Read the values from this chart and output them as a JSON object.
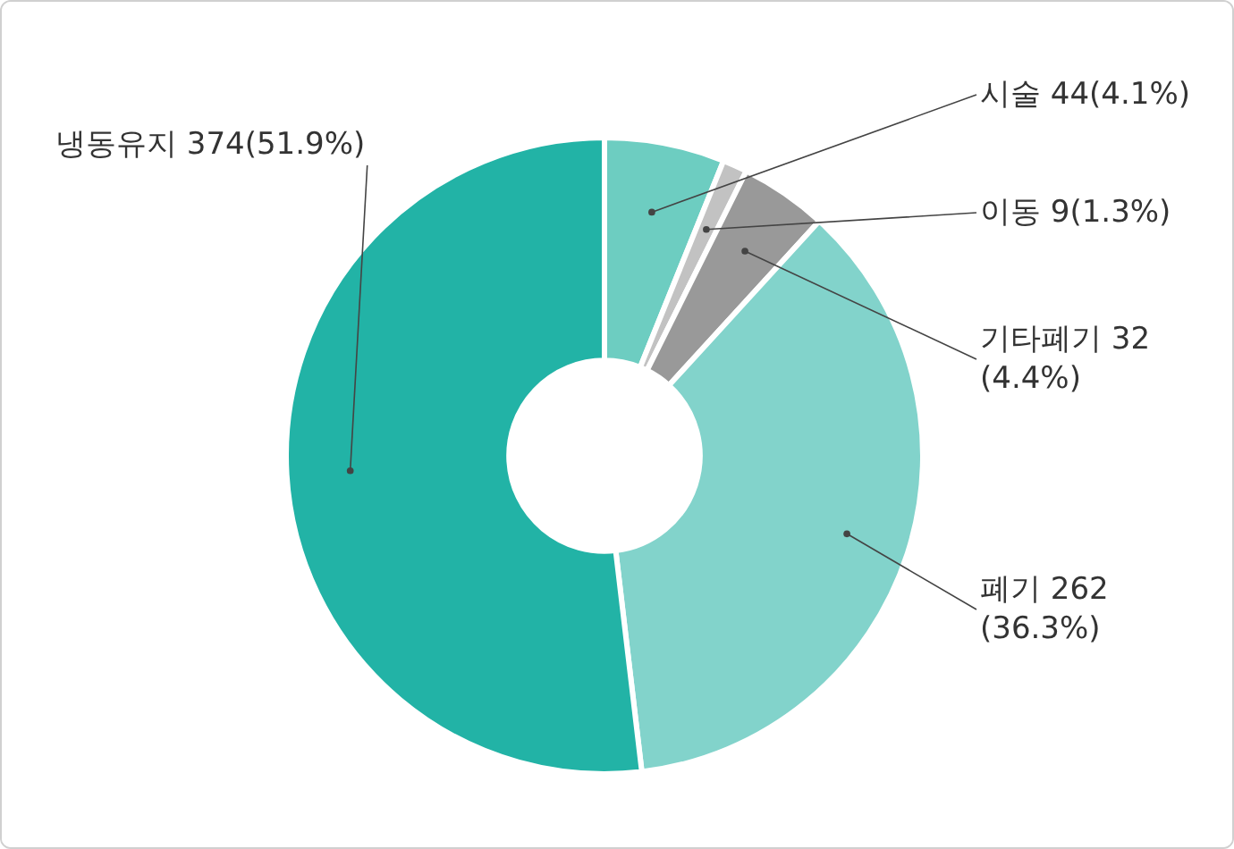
{
  "chart_data": {
    "type": "donut",
    "categories": [
      "시술",
      "이동",
      "기타폐기",
      "폐기",
      "냉동유지"
    ],
    "values": [
      44,
      9,
      32,
      262,
      374
    ],
    "colors": [
      "#6dcdc1",
      "#c2c2c2",
      "#999999",
      "#82d3cb",
      "#22b3a6"
    ],
    "value_labels": [
      "44(4.1%)",
      "9(1.3%)",
      "32\n(4.4%)",
      "262\n(36.3%)",
      "374(51.9%)"
    ],
    "legend": false
  }
}
